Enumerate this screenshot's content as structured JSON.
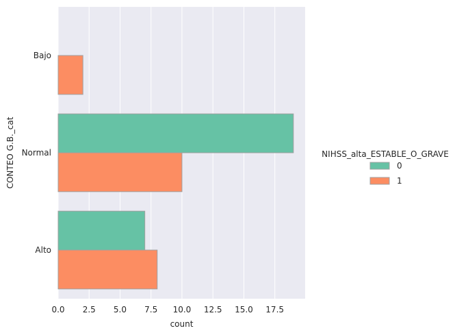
{
  "chart_data": {
    "type": "bar",
    "orientation": "horizontal",
    "categories": [
      "Bajo",
      "Normal",
      "Alto"
    ],
    "series": [
      {
        "name": "0",
        "values": [
          0,
          19,
          7
        ],
        "color": "#66c2a5"
      },
      {
        "name": "1",
        "values": [
          2,
          10,
          8
        ],
        "color": "#fc8d62"
      }
    ],
    "xlabel": "count",
    "ylabel": "CONTEO G.B._cat",
    "xlim": [
      0,
      19.95
    ],
    "xticks": [
      0,
      2.5,
      5,
      7.5,
      10,
      12.5,
      15,
      17.5
    ],
    "xtick_labels": [
      "0.0",
      "2.5",
      "5.0",
      "7.5",
      "10.0",
      "12.5",
      "15.0",
      "17.5"
    ],
    "legend": {
      "title": "NIHSS_alta_ESTABLE_O_GRAVE",
      "placement": "right"
    },
    "grid": true,
    "background": "#eaeaf2"
  }
}
